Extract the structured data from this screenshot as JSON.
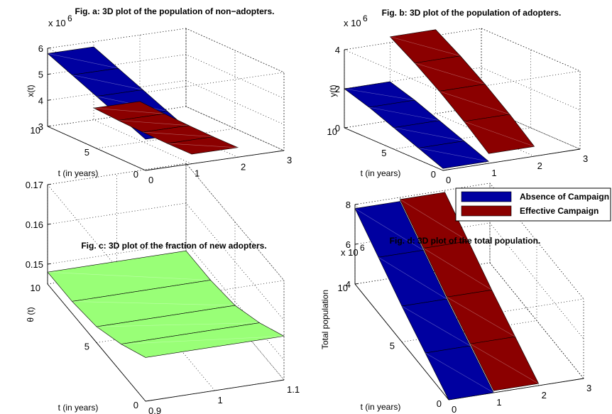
{
  "chart_data": [
    {
      "id": "a",
      "type": "surface",
      "title": "Fig. a: 3D plot of the population of non−adopters.",
      "zlabel": "x(t)",
      "ylabel": "t (in years)",
      "xlabel": "",
      "exponent_label": "x 10",
      "exponent": "6",
      "x_ticks": [
        "0",
        "1",
        "2",
        "3"
      ],
      "y_ticks": [
        "0",
        "5",
        "10"
      ],
      "z_ticks": [
        "3",
        "4",
        "5",
        "6"
      ],
      "xlim": [
        0,
        3
      ],
      "ylim": [
        0,
        10
      ],
      "zlim": [
        3,
        6
      ],
      "grid": true,
      "series": [
        {
          "name": "Absence of Campaign",
          "color": "#0000a0",
          "x": [
            0,
            1
          ],
          "y": [
            0,
            10
          ],
          "z": [
            5.8,
            5.4,
            5.0,
            4.6,
            4.2
          ]
        },
        {
          "name": "Effective Campaign",
          "color": "#8b0000",
          "x": [
            1,
            2
          ],
          "y": [
            0,
            10
          ],
          "z": [
            3.45,
            3.4,
            3.37,
            3.36,
            3.37
          ]
        }
      ]
    },
    {
      "id": "b",
      "type": "surface",
      "title": "Fig. b: 3D plot of the population of adopters.",
      "zlabel": "y(t)",
      "ylabel": "t (in years)",
      "xlabel": "",
      "exponent_label": "x 10",
      "exponent": "6",
      "x_ticks": [
        "0",
        "1",
        "2",
        "3"
      ],
      "y_ticks": [
        "0",
        "5",
        "10"
      ],
      "z_ticks": [
        "0",
        "2",
        "4"
      ],
      "xlim": [
        0,
        3
      ],
      "ylim": [
        0,
        10
      ],
      "zlim": [
        0,
        4
      ],
      "grid": true,
      "series": [
        {
          "name": "Absence of Campaign",
          "color": "#0000a0",
          "x": [
            0,
            1
          ],
          "y": [
            0,
            10
          ],
          "z": [
            2.0,
            1.6,
            1.1,
            0.6,
            0.1
          ]
        },
        {
          "name": "Effective Campaign",
          "color": "#8b0000",
          "x": [
            1,
            2
          ],
          "y": [
            0,
            10
          ],
          "z": [
            4.3,
            3.5,
            2.6,
            1.6,
            0.5
          ]
        }
      ]
    },
    {
      "id": "c",
      "type": "surface",
      "title": "Fig. c: 3D plot of the fraction of new adopters.",
      "zlabel": "θ (t)",
      "ylabel": "t (in years)",
      "xlabel": "",
      "exponent_label": "",
      "exponent": "",
      "x_ticks": [
        "0.9",
        "1",
        "1.1"
      ],
      "y_ticks": [
        "0",
        "5",
        "10"
      ],
      "z_ticks": [
        "0.15",
        "0.16",
        "0.17"
      ],
      "xlim": [
        0.9,
        1.1
      ],
      "ylim": [
        0,
        10
      ],
      "zlim": [
        0.145,
        0.17
      ],
      "grid": true,
      "series": [
        {
          "name": "",
          "color": "#99ff77",
          "x": [
            0.9,
            1.1
          ],
          "y": [
            0,
            10
          ],
          "z": [
            0.148,
            0.148,
            0.149,
            0.152,
            0.156
          ]
        }
      ]
    },
    {
      "id": "d",
      "type": "surface",
      "title": "Fig. d: 3D plot of the total population.",
      "zlabel": "Total population",
      "ylabel": "t (in years)",
      "xlabel": "",
      "exponent_label": "x 10",
      "exponent": "6",
      "x_ticks": [
        "0",
        "1",
        "2",
        "3"
      ],
      "y_ticks": [
        "0",
        "5",
        "10"
      ],
      "z_ticks": [
        "4",
        "6",
        "8"
      ],
      "xlim": [
        0,
        3
      ],
      "ylim": [
        0,
        10
      ],
      "zlim": [
        4,
        8
      ],
      "grid": true,
      "series": [
        {
          "name": "Absence of Campaign",
          "color": "#0000a0",
          "x": [
            0,
            1
          ],
          "y": [
            0,
            10
          ],
          "z": [
            7.8,
            6.8,
            5.8,
            4.9,
            4.0
          ]
        },
        {
          "name": "Effective Campaign",
          "color": "#8b0000",
          "x": [
            1,
            2
          ],
          "y": [
            0,
            10
          ],
          "z": [
            7.9,
            6.9,
            5.9,
            5.0,
            4.1
          ]
        }
      ]
    }
  ],
  "legend": {
    "placement": "middle-right",
    "items": [
      {
        "label": "Absence of Campaign",
        "color": "#0000a0"
      },
      {
        "label": "Effective Campaign",
        "color": "#8b0000"
      }
    ]
  }
}
